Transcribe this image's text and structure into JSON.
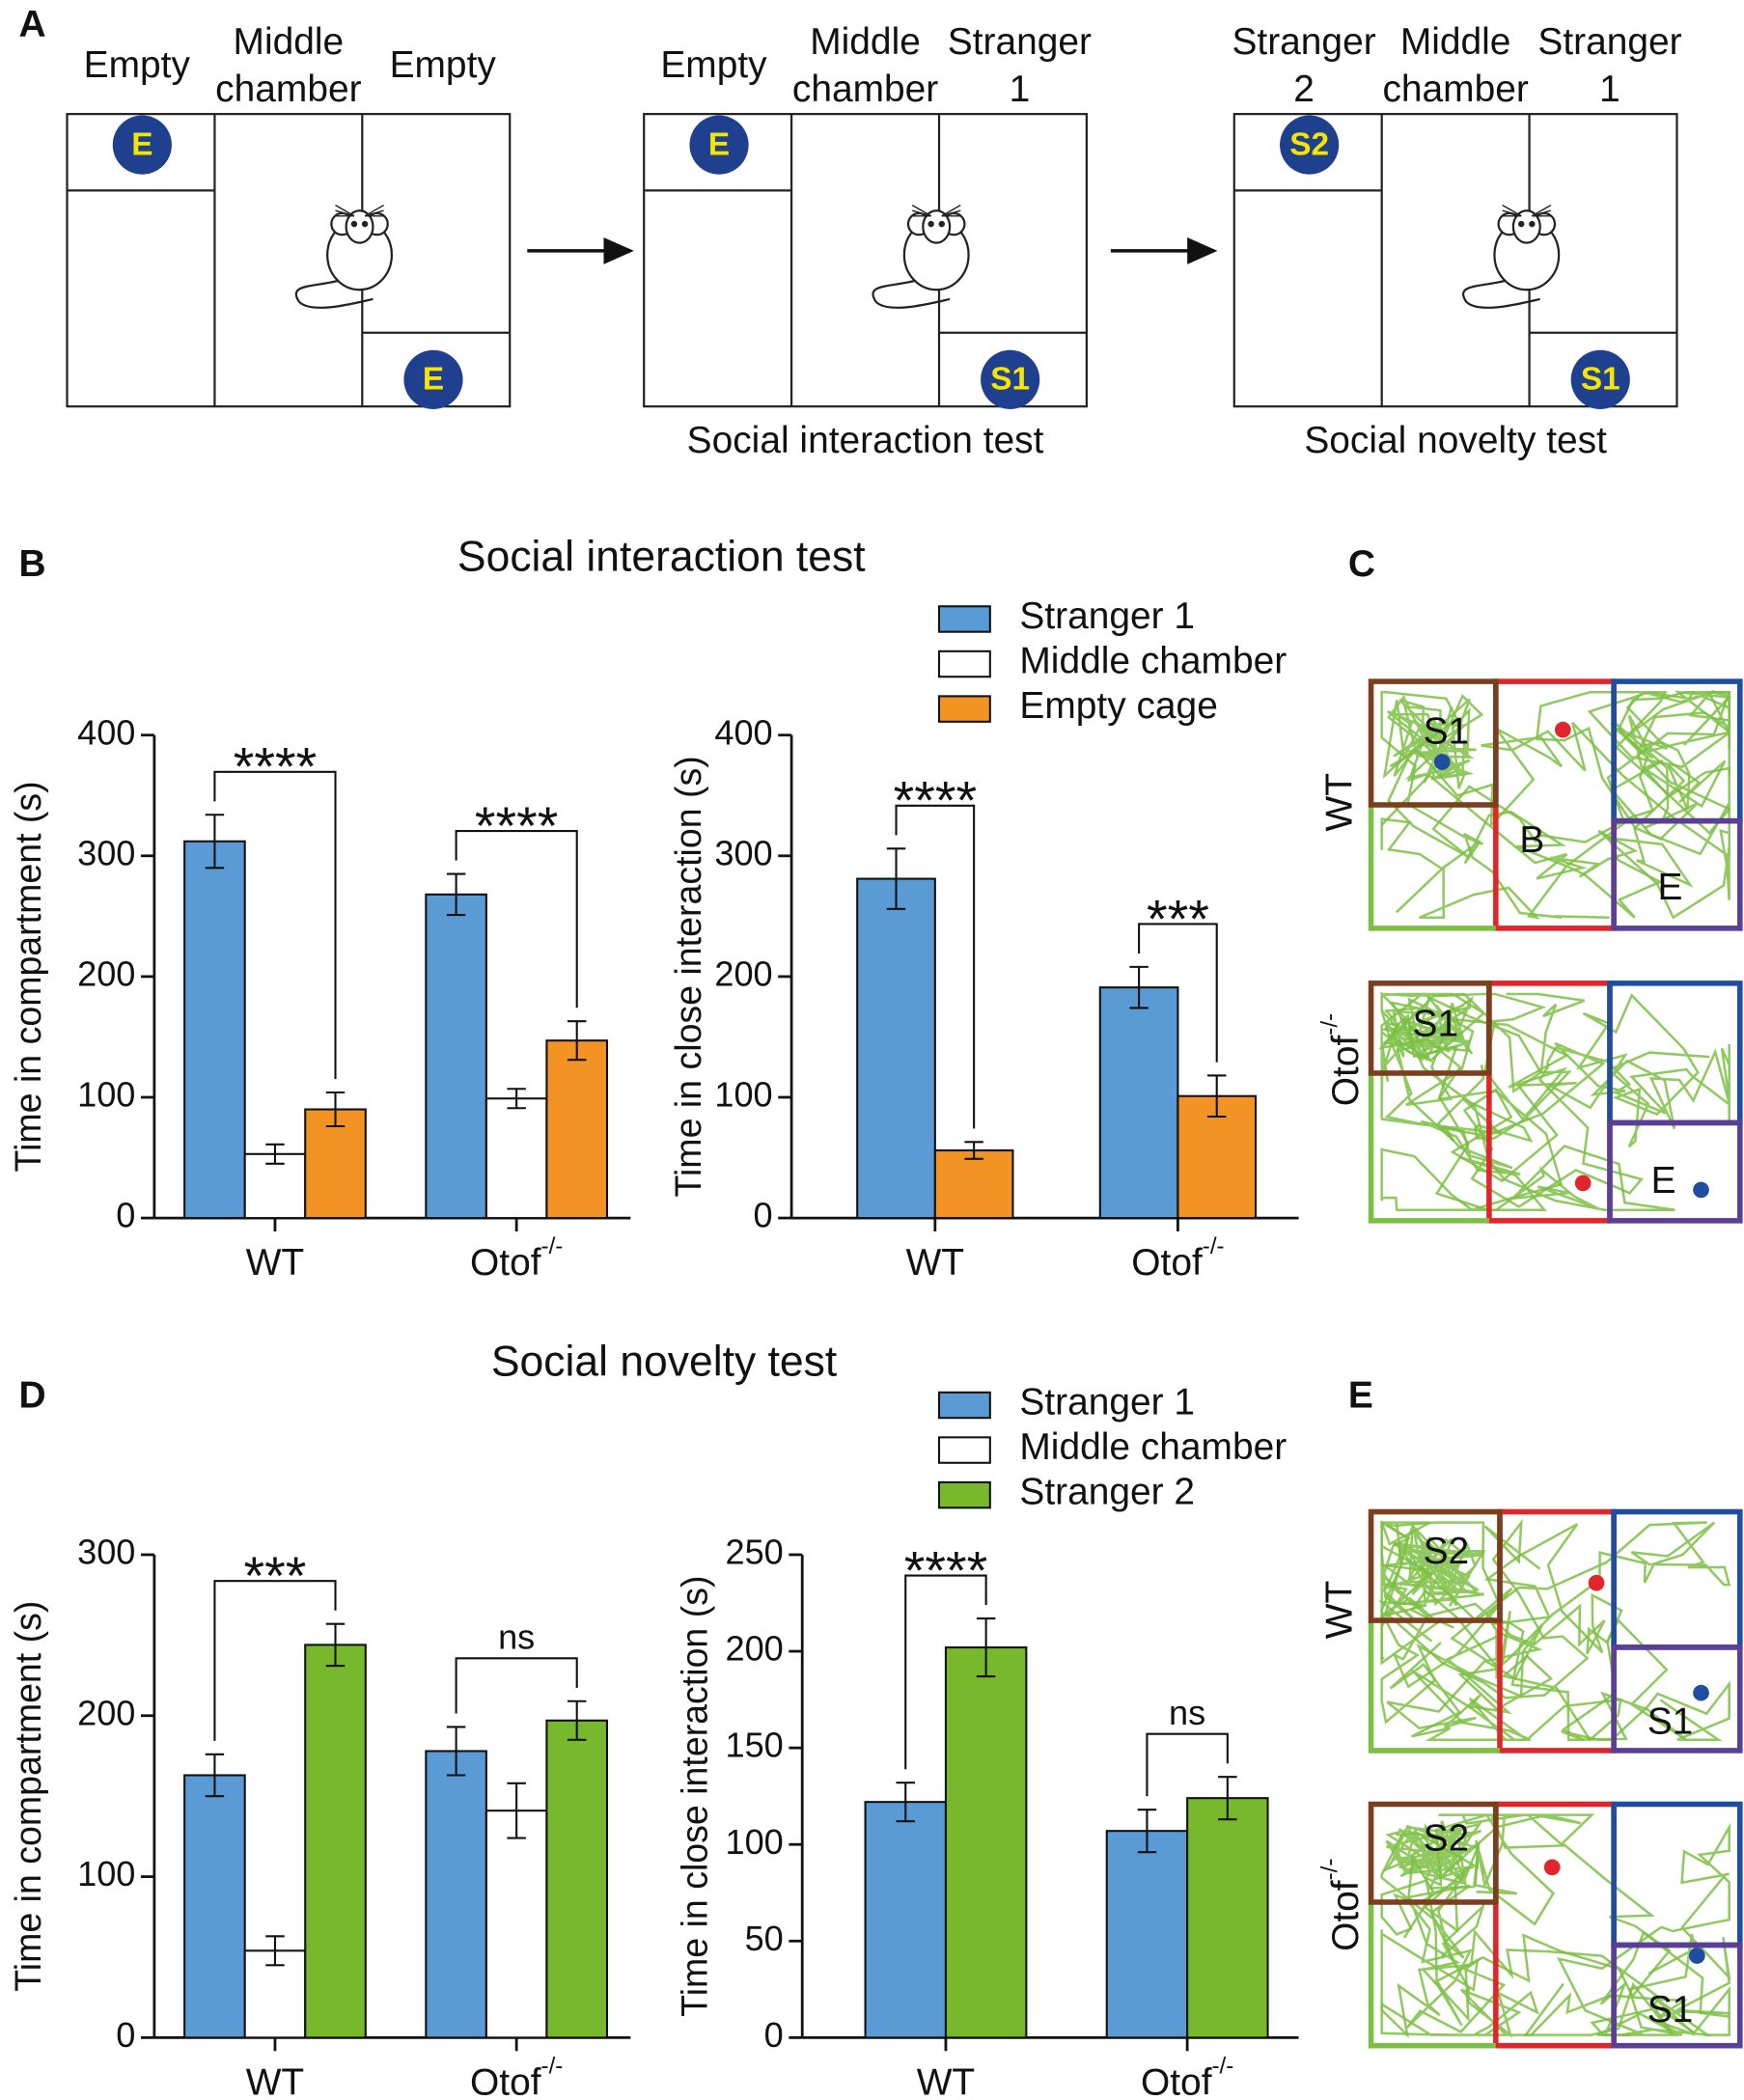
{
  "panel_labels": [
    "A",
    "B",
    "C",
    "D",
    "E"
  ],
  "diagram": {
    "stages": [
      {
        "chambers": [
          [
            "Empty"
          ],
          [
            "Middle",
            "chamber"
          ],
          [
            "Empty"
          ]
        ],
        "cages": [
          "E",
          "E"
        ]
      },
      {
        "chambers": [
          [
            "Empty"
          ],
          [
            "Middle",
            "chamber"
          ],
          [
            "Stranger",
            "1"
          ]
        ],
        "cages": [
          "E",
          "S1"
        ],
        "caption": "Social interaction test"
      },
      {
        "chambers": [
          [
            "Stranger",
            "2"
          ],
          [
            "Middle",
            "chamber"
          ],
          [
            "Stranger",
            "1"
          ]
        ],
        "cages": [
          "S2",
          "S1"
        ],
        "caption": "Social novelty test"
      }
    ]
  },
  "chart_data": [
    {
      "type": "bar",
      "title": "Social interaction test",
      "ylabel": "Time in compartment (s)",
      "categories": [
        "WT",
        "Otof-/-"
      ],
      "series": [
        {
          "name": "Stranger 1",
          "color": "#5b9bd5",
          "values": [
            312,
            268
          ],
          "errors": [
            22,
            17
          ]
        },
        {
          "name": "Middle chamber",
          "color": "#ffffff",
          "values": [
            53,
            99
          ],
          "errors": [
            8,
            8
          ]
        },
        {
          "name": "Empty cage",
          "color": "#f39323",
          "values": [
            90,
            147
          ],
          "errors": [
            14,
            16
          ]
        }
      ],
      "annotations": [
        "****",
        "****"
      ],
      "ylim": [
        0,
        400
      ],
      "yticks": [
        0,
        100,
        200,
        300,
        400
      ]
    },
    {
      "type": "bar",
      "ylabel": "Time in close interaction (s)",
      "categories": [
        "WT",
        "Otof-/-"
      ],
      "series": [
        {
          "color": "#5b9bd5",
          "values": [
            281,
            191
          ],
          "errors": [
            25,
            17
          ]
        },
        {
          "color": "#f39323",
          "values": [
            56,
            101
          ],
          "errors": [
            7,
            17
          ]
        }
      ],
      "annotations": [
        "****",
        "***"
      ],
      "ylim": [
        0,
        400
      ],
      "yticks": [
        0,
        100,
        200,
        300,
        400
      ]
    },
    {
      "type": "bar",
      "title": "Social novelty test",
      "ylabel": "Time in compartment (s)",
      "categories": [
        "WT",
        "Otof-/-"
      ],
      "series": [
        {
          "name": "Stranger 1",
          "color": "#5b9bd5",
          "values": [
            163,
            178
          ],
          "errors": [
            13,
            15
          ]
        },
        {
          "name": "Middle chamber",
          "color": "#ffffff",
          "values": [
            54,
            141
          ],
          "errors": [
            9,
            17
          ]
        },
        {
          "name": "Stranger 2",
          "color": "#77b82c",
          "values": [
            244,
            197
          ],
          "errors": [
            13,
            12
          ]
        }
      ],
      "annotations": [
        "***",
        "ns"
      ],
      "ylim": [
        0,
        300
      ],
      "yticks": [
        0,
        100,
        200,
        300
      ]
    },
    {
      "type": "bar",
      "ylabel": "Time in close interaction (s)",
      "categories": [
        "WT",
        "Otof-/-"
      ],
      "series": [
        {
          "color": "#5b9bd5",
          "values": [
            122,
            107
          ],
          "errors": [
            10,
            11
          ]
        },
        {
          "color": "#77b82c",
          "values": [
            202,
            124
          ],
          "errors": [
            15,
            11
          ]
        }
      ],
      "annotations": [
        "****",
        "ns"
      ],
      "ylim": [
        0,
        250
      ],
      "yticks": [
        0,
        50,
        100,
        150,
        200,
        250
      ]
    }
  ],
  "tracks": [
    {
      "groups": [
        {
          "label": "WT",
          "zones": [
            "S1",
            "B",
            "E"
          ]
        },
        {
          "label": "Otof-/-",
          "zones": [
            "S1",
            "E"
          ]
        }
      ]
    },
    {
      "groups": [
        {
          "label": "WT",
          "zones": [
            "S2",
            "S1"
          ]
        },
        {
          "label": "Otof-/-",
          "zones": [
            "S2",
            "S1"
          ]
        }
      ]
    }
  ]
}
